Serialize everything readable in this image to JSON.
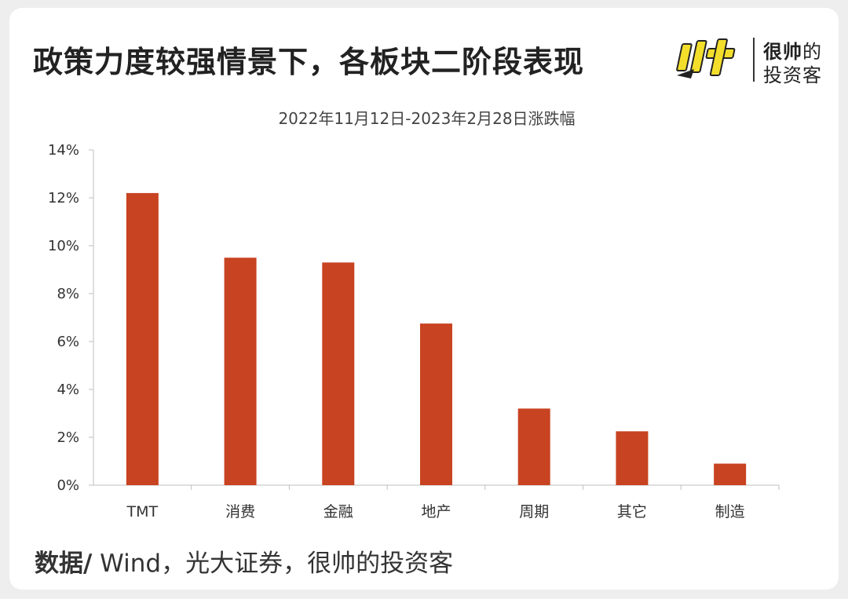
{
  "header": {
    "title": "政策力度较强情景下，各板块二阶段表现",
    "brand_line1_bold": "很帅",
    "brand_line1_rest": "的",
    "brand_line2": "投资客"
  },
  "colors": {
    "bar": "#c84321",
    "brand_yellow": "#f3df2b",
    "axis": "#bfbfbf",
    "text": "#333333"
  },
  "chart_data": {
    "type": "bar",
    "title": "2022年11月12日-2023年2月28日涨跌幅",
    "categories": [
      "TMT",
      "消费",
      "金融",
      "地产",
      "周期",
      "其它",
      "制造"
    ],
    "values": [
      12.2,
      9.5,
      9.3,
      6.75,
      3.2,
      2.25,
      0.9
    ],
    "ylim": [
      0,
      14
    ],
    "yticks": [
      "0%",
      "2%",
      "4%",
      "6%",
      "8%",
      "10%",
      "12%",
      "14%"
    ],
    "xlabel": "",
    "ylabel": "",
    "grid": false
  },
  "footer": {
    "source_label": "数据/",
    "source_text": " Wind，光大证券，很帅的投资客"
  }
}
